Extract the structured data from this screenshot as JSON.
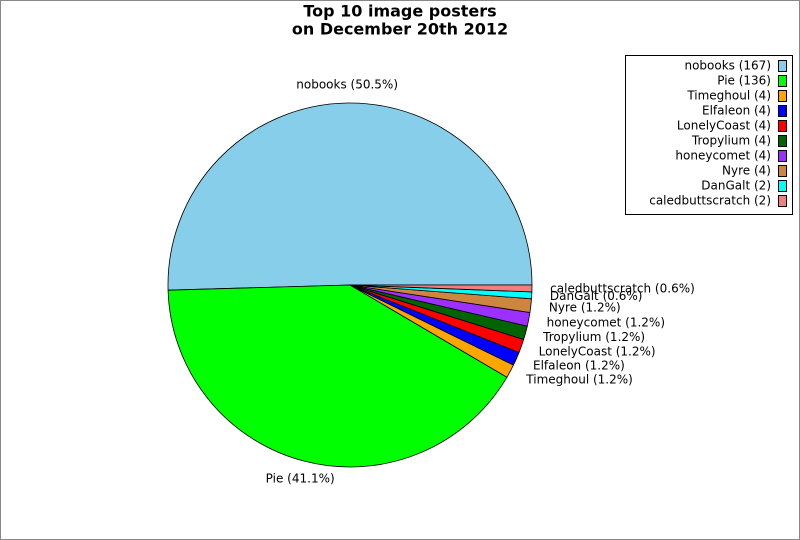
{
  "chart_data": {
    "type": "pie",
    "title": [
      "Top 10 image posters",
      "on December 20th 2012"
    ],
    "categories": [
      "nobooks",
      "Pie",
      "Timeghoul",
      "Elfaleon",
      "LonelyCoast",
      "Tropylium",
      "honeycomet",
      "Nyre",
      "DanGalt",
      "caledbuttscratch"
    ],
    "values": [
      167,
      136,
      4,
      4,
      4,
      4,
      4,
      4,
      2,
      2
    ],
    "value_labels": [
      "nobooks (50.5%)",
      "Pie (41.1%)",
      "Timeghoul (1.2%)",
      "Elfaleon (1.2%)",
      "LonelyCoast (1.2%)",
      "Tropylium (1.2%)",
      "honeycomet (1.2%)",
      "Nyre (1.2%)",
      "DanGalt (0.6%)",
      "caledbuttscratch (0.6%)"
    ],
    "legend_labels": [
      "nobooks (167)",
      "Pie (136)",
      "Timeghoul (4)",
      "Elfaleon (4)",
      "LonelyCoast (4)",
      "Tropylium (4)",
      "honeycomet (4)",
      "Nyre (4)",
      "DanGalt (2)",
      "caledbuttscratch (2)"
    ],
    "colors": [
      "#87ceeb",
      "#00ff00",
      "#ffa500",
      "#0000ff",
      "#ff0000",
      "#006400",
      "#9b30ff",
      "#cd853f",
      "#00ffff",
      "#f08080"
    ],
    "legend": "upper right"
  }
}
